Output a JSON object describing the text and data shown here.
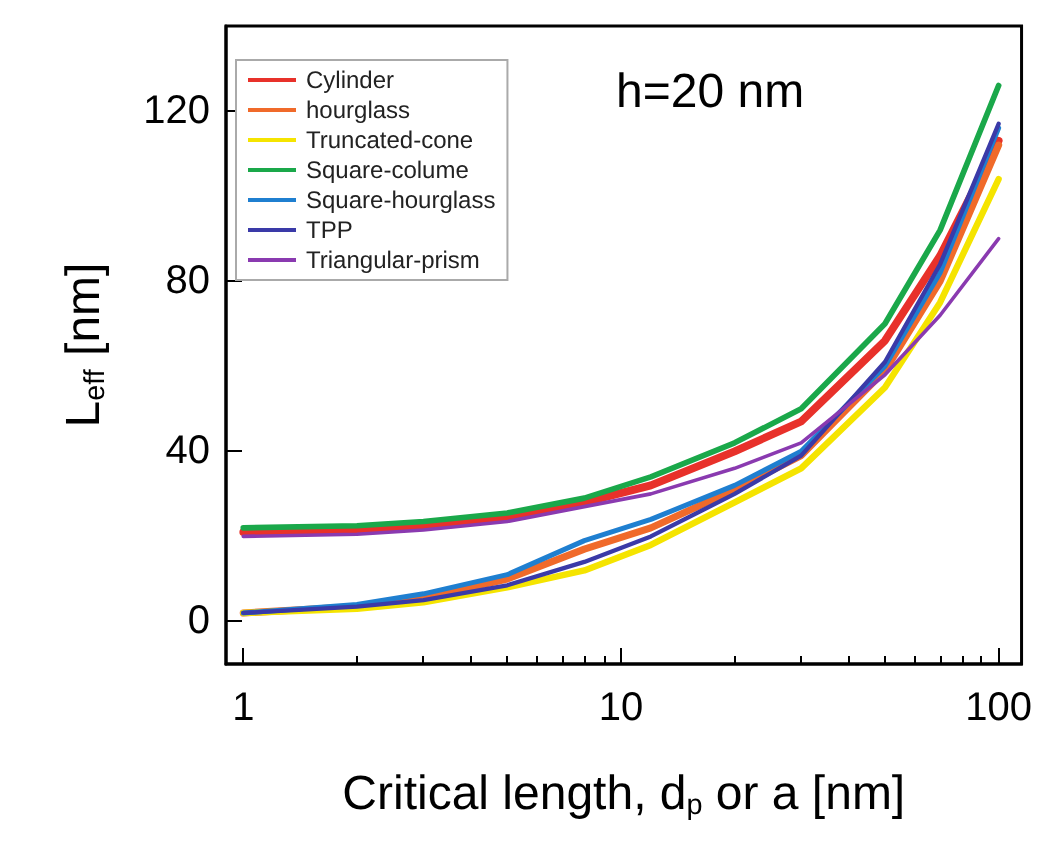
{
  "chart_data": {
    "type": "line",
    "xlabel": "Critical length, d$_{p}$ or a [nm]",
    "ylabel": "L$_{eff}$ [nm]",
    "annotations": [
      "h=20 nm"
    ],
    "x": [
      1,
      2,
      3,
      5,
      8,
      12,
      20,
      30,
      50,
      70,
      100
    ],
    "series": [
      {
        "name": "Cylinder",
        "color": "#e8312a",
        "values": [
          21,
          21.5,
          22.5,
          24.5,
          28,
          32,
          40,
          47,
          66,
          86,
          113
        ]
      },
      {
        "name": "hourglass",
        "color": "#f06a2a",
        "values": [
          2,
          3.5,
          5.5,
          10,
          17,
          22,
          31,
          39,
          59,
          80,
          112
        ]
      },
      {
        "name": "Truncated-cone",
        "color": "#f5e400",
        "values": [
          2,
          3,
          4.5,
          8,
          12,
          18,
          28,
          36,
          55,
          75,
          104
        ]
      },
      {
        "name": "Square-colume",
        "color": "#1aa84a",
        "values": [
          22,
          22.5,
          23.5,
          25.5,
          29,
          34,
          42,
          50,
          70,
          92,
          126
        ]
      },
      {
        "name": "Square-hourglass",
        "color": "#1f7fd0",
        "values": [
          2,
          4,
          6.5,
          11,
          19,
          24,
          32,
          40,
          60,
          82,
          116
        ]
      },
      {
        "name": "TPP",
        "color": "#3a3aa8",
        "values": [
          2,
          3.5,
          5,
          8.5,
          14,
          20,
          30,
          39,
          61,
          84,
          117
        ]
      },
      {
        "name": "Triangular-prism",
        "color": "#8a3ab0",
        "values": [
          20,
          20.5,
          21.5,
          23.5,
          27,
          30,
          36,
          42,
          58,
          72,
          90
        ]
      }
    ],
    "xlim": [
      0.9,
      115
    ],
    "xticks": [
      1,
      10,
      100
    ],
    "ylim": [
      -10,
      140
    ],
    "yticks": [
      0,
      40,
      80,
      120
    ],
    "log": "x",
    "grid": false,
    "legend": "top left",
    "marker": "none",
    "line_style": "solid"
  }
}
